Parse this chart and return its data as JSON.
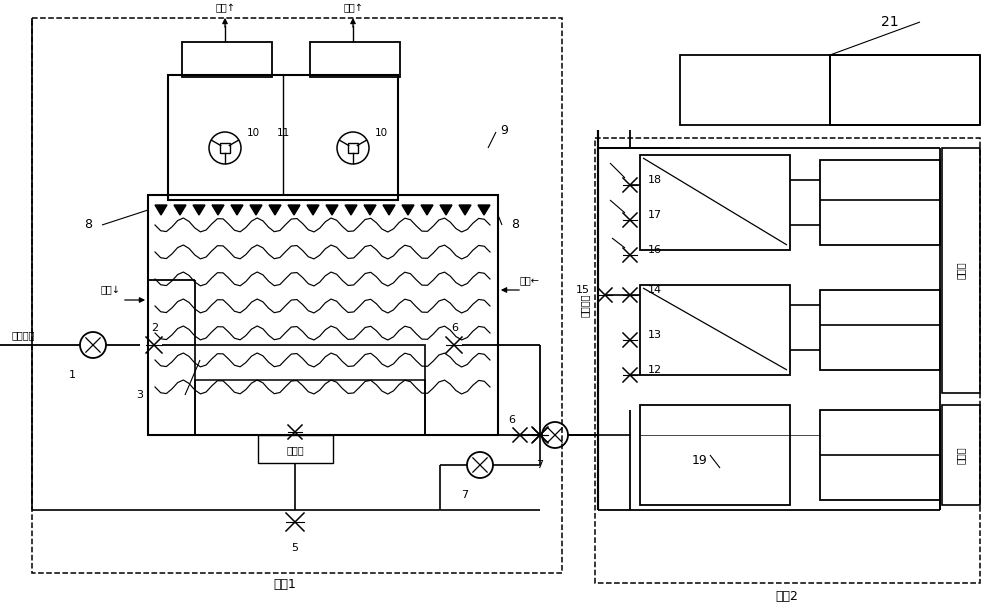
{
  "bg": "#ffffff",
  "lc": "#000000",
  "sys1_label": "系统1",
  "sys2_label": "系统2",
  "paifeng_left": "排风↑",
  "paifeng_right": "排风↑",
  "jinfeng_left": "进风↓",
  "jinfeng_right": "进风←",
  "kongtiao_huishui": "空调回水",
  "kongtiao_gongshui": "空调供水",
  "paiwukou": "排污口",
  "lengji": "冷机组",
  "lenghuan": "冷换器",
  "n1": "1",
  "n2": "2",
  "n3": "3",
  "n5": "5",
  "n6": "6",
  "n7": "7",
  "n8a": "8",
  "n8b": "8",
  "n9": "9",
  "n10a": "10",
  "n10b": "10",
  "n11": "11",
  "n12": "12",
  "n13": "13",
  "n14": "14",
  "n15": "15",
  "n16": "16",
  "n17": "17",
  "n18": "18",
  "n19": "19",
  "n21": "21"
}
